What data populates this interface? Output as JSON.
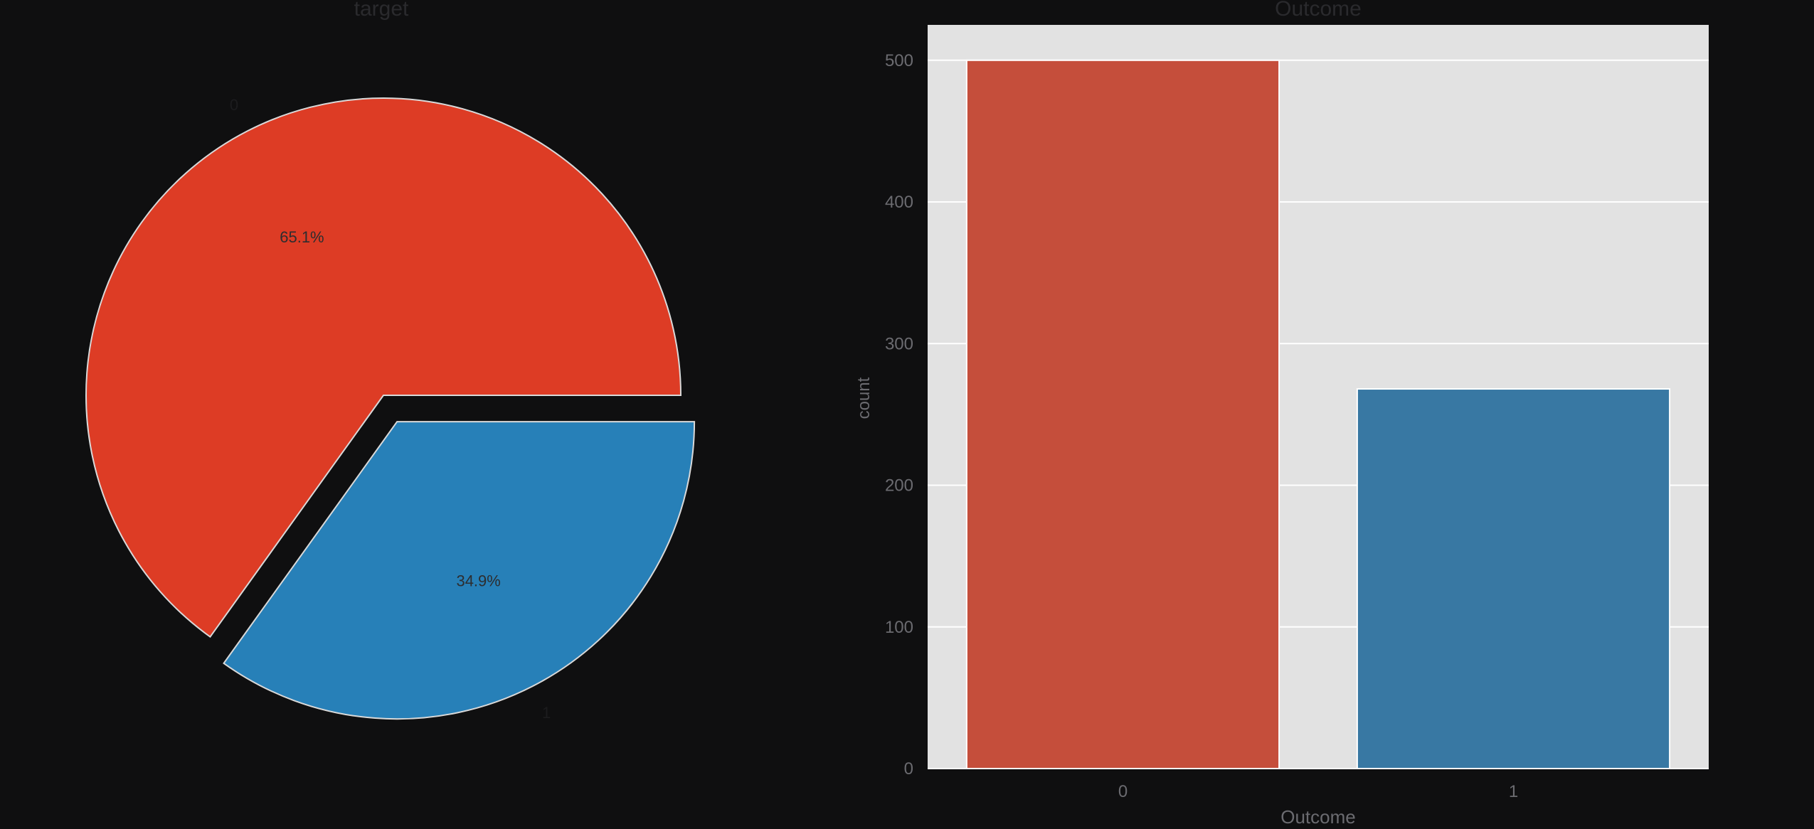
{
  "colors": {
    "page_bg": "#0f0f10",
    "plot_bg": "#e2e2e2",
    "grid": "#ffffff",
    "series_0": "#dd3c25",
    "series_1": "#2780b8",
    "bar_0": "#c54e3b",
    "bar_1": "#3878a3",
    "pie_edge": "#d9d9d9"
  },
  "chart_data": [
    {
      "type": "pie",
      "title": "target",
      "labels": [
        "0",
        "1"
      ],
      "values": [
        65.1,
        34.9
      ],
      "autopct_labels": [
        "65.1%",
        "34.9%"
      ],
      "explode": [
        0,
        0.1
      ],
      "start_angle_deg": 0
    },
    {
      "type": "bar",
      "title": "Outcome",
      "xlabel": "Outcome",
      "ylabel": "count",
      "categories": [
        "0",
        "1"
      ],
      "values": [
        500,
        268
      ],
      "ylim": [
        0,
        500
      ],
      "yticks": [
        "0",
        "100",
        "200",
        "300",
        "400",
        "500"
      ],
      "grid": true
    }
  ]
}
